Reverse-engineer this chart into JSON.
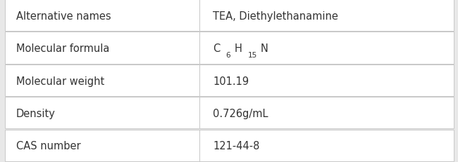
{
  "rows": [
    {
      "label": "Alternative names",
      "value": "TEA, Diethylethanamine",
      "formula": false
    },
    {
      "label": "Molecular formula",
      "value": "C6H15N",
      "formula": true
    },
    {
      "label": "Molecular weight",
      "value": "101.19",
      "formula": false
    },
    {
      "label": "Density",
      "value": "0.726g/mL",
      "formula": false
    },
    {
      "label": "CAS number",
      "value": "121-44-8",
      "formula": false
    }
  ],
  "col_split": 0.435,
  "bg_color": "#e8e8e8",
  "cell_bg": "#ffffff",
  "border_color": "#c8c8c8",
  "text_color": "#333333",
  "label_fontsize": 10.5,
  "value_fontsize": 10.5,
  "formula_parts": [
    {
      "text": "C",
      "sub": false
    },
    {
      "text": "6",
      "sub": true
    },
    {
      "text": "H",
      "sub": false
    },
    {
      "text": "15",
      "sub": true
    },
    {
      "text": "N",
      "sub": false
    }
  ]
}
